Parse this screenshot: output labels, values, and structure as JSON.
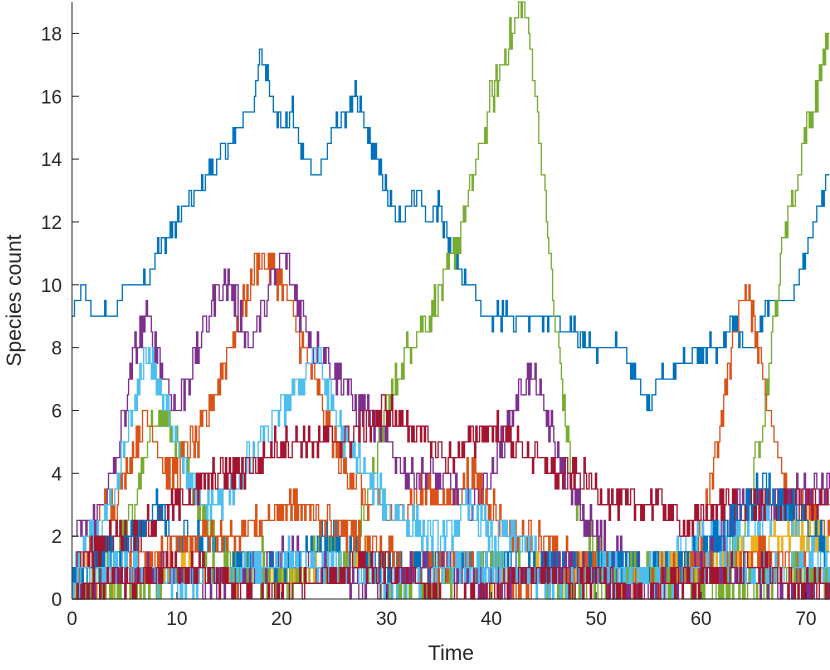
{
  "chart_data": {
    "type": "line",
    "title": "",
    "xlabel": "Time",
    "ylabel": "Species count",
    "xlim": [
      0,
      72.3
    ],
    "ylim": [
      0,
      19
    ],
    "xticks": [
      "0",
      "10",
      "20",
      "30",
      "40",
      "50",
      "60",
      "70"
    ],
    "yticks": [
      "0",
      "2",
      "4",
      "6",
      "8",
      "10",
      "12",
      "14",
      "16",
      "18"
    ],
    "grid": false,
    "legend": "none",
    "series": [
      {
        "color": "#0072BD",
        "jitter": 0.3,
        "x": [
          0,
          1,
          2,
          4,
          5,
          7,
          8,
          10,
          12,
          14,
          16,
          17.5,
          18,
          19,
          20,
          21,
          22,
          23,
          24,
          25,
          26,
          27,
          28,
          29,
          30,
          31,
          32,
          33,
          34,
          35,
          36,
          37,
          38,
          39,
          40,
          42,
          44,
          46,
          48,
          50,
          52,
          53,
          54,
          55,
          56,
          57,
          58,
          60,
          62,
          63,
          64,
          65,
          66,
          67,
          68,
          69,
          70,
          71,
          72
        ],
        "y": [
          9,
          10,
          9,
          9,
          10,
          10,
          11,
          12,
          13,
          14,
          15,
          16,
          17.5,
          16,
          15,
          15.5,
          14,
          13.5,
          14,
          15,
          15.5,
          16,
          15,
          14,
          13,
          12,
          12.5,
          13,
          12,
          12.5,
          11,
          10.5,
          10,
          9,
          9,
          9,
          9,
          9,
          8.5,
          8,
          8,
          7.5,
          7,
          6,
          7,
          7,
          7.5,
          8,
          8,
          9,
          8,
          8,
          9,
          9.5,
          9.5,
          10,
          11,
          12,
          13.5
        ]
      },
      {
        "color": "#77AC30",
        "jitter": 0.55,
        "x": [
          0,
          2,
          4,
          6,
          8,
          10,
          12,
          14,
          16,
          18,
          20,
          22,
          24,
          26,
          28,
          30,
          32,
          34,
          36,
          38,
          40,
          42,
          43,
          44,
          45,
          46,
          47,
          48,
          50,
          52,
          54,
          56,
          58,
          60,
          62,
          64,
          65,
          66,
          67,
          68,
          69,
          70,
          71,
          72
        ],
        "y": [
          0,
          1,
          1.5,
          3,
          6,
          5,
          3,
          2,
          1,
          1.5,
          0.5,
          1,
          2,
          1,
          3,
          6,
          8,
          9,
          10.5,
          13,
          16,
          18,
          19,
          17,
          13,
          9,
          6,
          3,
          1.5,
          1,
          0.5,
          1,
          1,
          0.5,
          1,
          2,
          4,
          6,
          9,
          12,
          13,
          15,
          16,
          18
        ]
      },
      {
        "color": "#D95319",
        "jitter": 0.55,
        "x": [
          0,
          1,
          2,
          3,
          4,
          5,
          6,
          7,
          8,
          9,
          10,
          11,
          12,
          13,
          14,
          15,
          16,
          17,
          18,
          19,
          20,
          21,
          22,
          23,
          24,
          25,
          26,
          27,
          28,
          29,
          30,
          32,
          34,
          36,
          38,
          40,
          42,
          44,
          46,
          48,
          50,
          52,
          54,
          56,
          58,
          60,
          61,
          62,
          63,
          64,
          65,
          66,
          67,
          68,
          70,
          72
        ],
        "y": [
          0,
          1,
          2,
          3,
          3,
          4,
          5,
          6,
          5,
          4,
          4,
          5,
          5,
          6,
          7,
          8,
          9,
          10,
          11,
          10.5,
          10,
          9,
          8,
          7,
          6,
          5,
          4,
          4,
          3,
          3,
          2.5,
          3,
          3.5,
          3,
          4,
          3,
          2,
          2,
          1.5,
          1,
          1,
          0.5,
          1,
          1,
          1,
          2,
          4,
          6,
          8,
          10,
          9,
          7,
          5,
          4,
          3,
          2
        ]
      },
      {
        "color": "#7E2F8E",
        "jitter": 0.55,
        "x": [
          0,
          2,
          4,
          5,
          6,
          7,
          8,
          9,
          10,
          11,
          12,
          13,
          14,
          15,
          16,
          17,
          18,
          19,
          20,
          21,
          22,
          23,
          24,
          25,
          26,
          27,
          28,
          29,
          30,
          32,
          34,
          36,
          38,
          40,
          41,
          42,
          43,
          44,
          45,
          46,
          47,
          48,
          50,
          52,
          54,
          56,
          58,
          60,
          62,
          64,
          66,
          68,
          70,
          72
        ],
        "y": [
          2,
          2.5,
          4,
          6,
          8,
          9,
          8,
          7,
          6,
          7,
          8,
          9,
          10,
          10,
          9,
          8,
          9,
          10,
          11,
          10,
          9,
          8,
          8,
          7,
          7,
          6,
          6,
          5.5,
          5,
          4,
          4,
          3.5,
          3,
          4,
          5,
          6,
          7,
          7,
          6,
          5,
          4,
          3,
          2,
          1.5,
          1,
          1,
          1,
          1.5,
          2,
          3,
          3,
          3,
          3.5,
          3.5
        ]
      },
      {
        "color": "#4DBEEE",
        "jitter": 0.55,
        "x": [
          0,
          2,
          4,
          5,
          6,
          7,
          8,
          9,
          10,
          11,
          12,
          14,
          16,
          18,
          20,
          22,
          23,
          24,
          25,
          26,
          28,
          30,
          32,
          34,
          36,
          38,
          40,
          42,
          44,
          46,
          48,
          50,
          52,
          54,
          56,
          58,
          60,
          62,
          64,
          66,
          68,
          70,
          72
        ],
        "y": [
          1,
          2,
          3,
          5,
          6,
          8,
          7,
          6,
          5,
          4,
          3,
          3,
          4,
          5,
          6,
          7,
          8,
          7,
          6,
          5,
          4,
          3,
          2.5,
          2,
          2,
          3,
          2,
          2,
          1.5,
          1,
          1,
          1,
          0.5,
          1,
          1,
          1.5,
          2,
          2,
          2,
          2.5,
          2.5,
          2,
          2
        ]
      },
      {
        "color": "#A2142F",
        "jitter": 0.5,
        "x": [
          0,
          2,
          4,
          6,
          8,
          10,
          12,
          14,
          16,
          18,
          20,
          22,
          24,
          26,
          28,
          30,
          32,
          34,
          36,
          38,
          40,
          42,
          44,
          46,
          48,
          50,
          52,
          54,
          56,
          58,
          60,
          62,
          64,
          66,
          68,
          70,
          72
        ],
        "y": [
          1,
          1.5,
          2,
          2,
          2.5,
          3,
          3.5,
          4,
          4,
          4.5,
          5,
          5,
          5,
          5,
          5.5,
          6,
          5.5,
          5,
          4.5,
          5,
          5.5,
          5,
          4.5,
          4,
          4,
          3.5,
          3,
          3,
          3,
          2.5,
          2.5,
          3,
          3,
          3,
          3,
          3,
          3
        ]
      },
      {
        "color": "#EDB120",
        "jitter": 0.4,
        "x": [
          0,
          4,
          8,
          12,
          16,
          20,
          24,
          28,
          32,
          36,
          40,
          44,
          48,
          52,
          56,
          60,
          64,
          68,
          72
        ],
        "y": [
          0,
          0.5,
          1,
          1,
          0.5,
          1,
          1,
          1.5,
          1,
          1,
          0.5,
          1,
          1,
          0.5,
          1,
          1,
          1.5,
          2,
          2
        ]
      },
      {
        "color": "#0072BD",
        "jitter": 0.5,
        "x": [
          0,
          2,
          4,
          6,
          8,
          10,
          12,
          14,
          16,
          18,
          20,
          22,
          24,
          26,
          28,
          30,
          32,
          34,
          36,
          38,
          40,
          42,
          44,
          46,
          48,
          50,
          52,
          54,
          56,
          58,
          60,
          62,
          64,
          66,
          68,
          70,
          72
        ],
        "y": [
          0.5,
          1,
          1.5,
          2,
          3,
          2,
          2,
          1.5,
          1,
          1,
          1,
          1.5,
          2,
          2,
          1.5,
          1,
          1,
          1,
          1,
          1,
          1,
          1,
          1,
          1,
          1,
          1,
          1,
          1,
          1,
          1,
          1.5,
          2,
          3,
          3.5,
          3,
          2.5,
          1.5
        ]
      },
      {
        "color": "#D95319",
        "jitter": 0.45,
        "x": [
          0,
          3,
          6,
          9,
          12,
          15,
          18,
          21,
          24,
          27,
          30,
          33,
          36,
          39,
          42,
          45,
          48,
          51,
          54,
          57,
          60,
          63,
          66,
          69,
          72
        ],
        "y": [
          0,
          0.5,
          1,
          1.5,
          2,
          2,
          2.5,
          3,
          2.5,
          2,
          1.5,
          1,
          1,
          1,
          0.5,
          0.5,
          1,
          1,
          0.5,
          0.5,
          1,
          1,
          1.5,
          1,
          0.5
        ]
      },
      {
        "color": "#77AC30",
        "jitter": 0.45,
        "x": [
          0,
          3,
          6,
          9,
          12,
          15,
          18,
          21,
          24,
          27,
          30,
          33,
          36,
          39,
          42,
          45,
          48,
          51,
          54,
          57,
          60,
          63,
          66,
          69,
          72
        ],
        "y": [
          0,
          0,
          0.5,
          0.5,
          1,
          1,
          0.5,
          0.5,
          1,
          1,
          0.5,
          0,
          0.5,
          1,
          1,
          0.5,
          0,
          0.5,
          1,
          0.5,
          0,
          0.5,
          0.5,
          1,
          0.5
        ]
      },
      {
        "color": "#7E2F8E",
        "jitter": 0.45,
        "x": [
          0,
          3,
          6,
          9,
          12,
          15,
          18,
          21,
          24,
          27,
          30,
          33,
          36,
          39,
          42,
          45,
          48,
          51,
          54,
          57,
          60,
          63,
          66,
          69,
          72
        ],
        "y": [
          0,
          0.5,
          1,
          1,
          0.5,
          0.5,
          1,
          1.5,
          1,
          0.5,
          0.5,
          1,
          1,
          0.5,
          0.5,
          1,
          1,
          0.5,
          0,
          0.5,
          1,
          1,
          0.5,
          0.5,
          0
        ]
      },
      {
        "color": "#4DBEEE",
        "jitter": 0.45,
        "x": [
          0,
          3,
          6,
          9,
          12,
          15,
          18,
          21,
          24,
          27,
          30,
          33,
          36,
          39,
          42,
          45,
          48,
          51,
          54,
          57,
          60,
          63,
          66,
          69,
          72
        ],
        "y": [
          0.5,
          1,
          1,
          0.5,
          0.5,
          1,
          1,
          1.5,
          1,
          1,
          0.5,
          0.5,
          1,
          1,
          1,
          0.5,
          0.5,
          1,
          0.5,
          0.5,
          1,
          1,
          1,
          1,
          1
        ]
      },
      {
        "color": "#A2142F",
        "jitter": 0.45,
        "x": [
          0,
          3,
          6,
          9,
          12,
          15,
          18,
          21,
          24,
          27,
          30,
          33,
          36,
          39,
          42,
          45,
          48,
          51,
          54,
          57,
          60,
          63,
          66,
          69,
          72
        ],
        "y": [
          0,
          0.5,
          0.5,
          1,
          1,
          0.5,
          0,
          0.5,
          0.5,
          1,
          1,
          0.5,
          0,
          0,
          0.5,
          1,
          0.5,
          0.5,
          0,
          0.5,
          0.5,
          1,
          1,
          0.5,
          0.5
        ]
      }
    ]
  }
}
